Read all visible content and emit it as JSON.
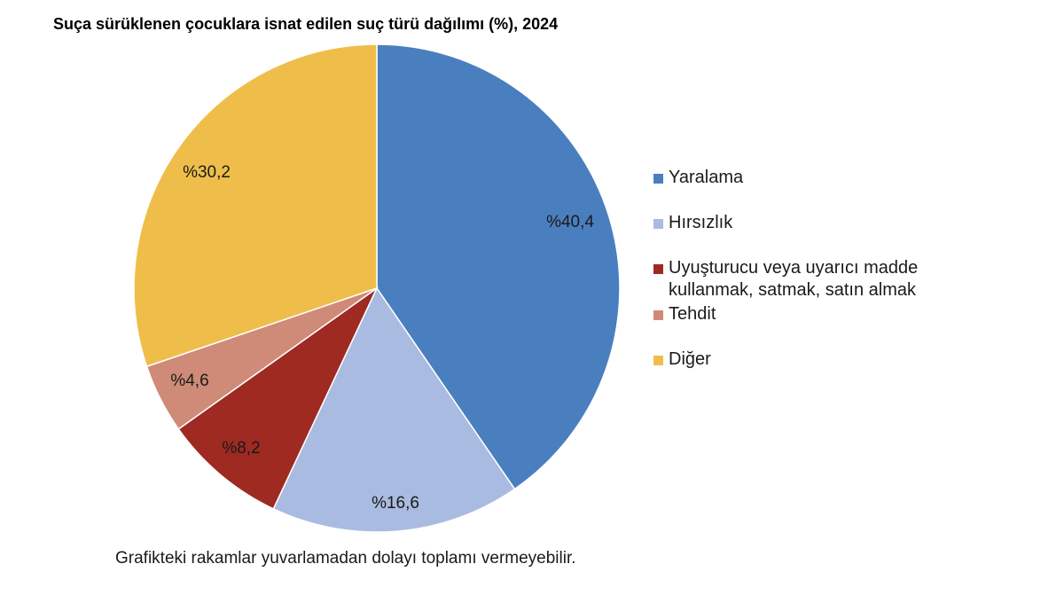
{
  "title": "Suça sürüklenen çocuklara isnat edilen suç türü dağılımı (%), 2024",
  "footnote": "Grafikteki rakamlar yuvarlamadan dolayı toplamı vermeyebilir.",
  "chart_data": {
    "type": "pie",
    "title": "Suça sürüklenen çocuklara isnat edilen suç türü dağılımı (%), 2024",
    "categories": [
      "Yaralama",
      "Hırsızlık",
      "Uyuşturucu veya uyarıcı madde kullanmak, satmak, satın almak",
      "Tehdit",
      "Diğer"
    ],
    "values": [
      40.4,
      16.6,
      8.2,
      4.6,
      30.2
    ],
    "data_labels": [
      "%40,4",
      "%16,6",
      "%8,2",
      "%4,6",
      "%30,2"
    ],
    "colors": [
      "#4a7fbf",
      "#a9bbe0",
      "#9e2a22",
      "#cf8b77",
      "#efbe4a"
    ],
    "legend_position": "right",
    "legend": [
      {
        "line1": "Yaralama",
        "line2": ""
      },
      {
        "line1": "Hırsızlık",
        "line2": ""
      },
      {
        "line1": "Uyuşturucu veya uyarıcı madde",
        "line2": "kullanmak, satmak, satın almak"
      },
      {
        "line1": "Tehdit",
        "line2": ""
      },
      {
        "line1": "Diğer",
        "line2": ""
      }
    ]
  }
}
